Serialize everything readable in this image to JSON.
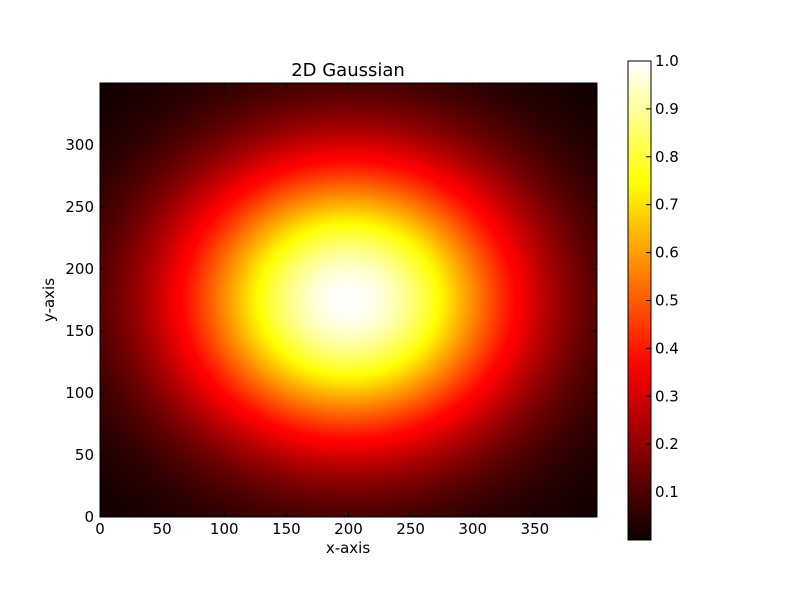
{
  "chart_data": {
    "type": "heatmap",
    "title": "2D Gaussian",
    "xlabel": "x-axis",
    "ylabel": "y-axis",
    "xlim": [
      0,
      400
    ],
    "ylim": [
      0,
      350
    ],
    "x_ticks": [
      "0",
      "50",
      "100",
      "150",
      "200",
      "250",
      "300",
      "350"
    ],
    "y_ticks": [
      "0",
      "50",
      "100",
      "150",
      "200",
      "250",
      "300"
    ],
    "gaussian": {
      "peak": 1.0,
      "center_x": 200,
      "center_y": 175,
      "sigma_x": 95,
      "sigma_y": 80
    },
    "colormap": "hot",
    "colorbar": {
      "range": [
        0.0,
        1.0
      ],
      "ticks": [
        "0.1",
        "0.2",
        "0.3",
        "0.4",
        "0.5",
        "0.6",
        "0.7",
        "0.8",
        "0.9",
        "1.0"
      ]
    },
    "grid": false
  }
}
